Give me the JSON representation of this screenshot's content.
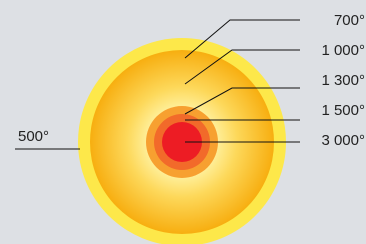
{
  "labels": [
    "700°",
    "1 000°",
    "1 300°",
    "1 500°",
    "3 000°"
  ],
  "outer_label": "500°"
}
